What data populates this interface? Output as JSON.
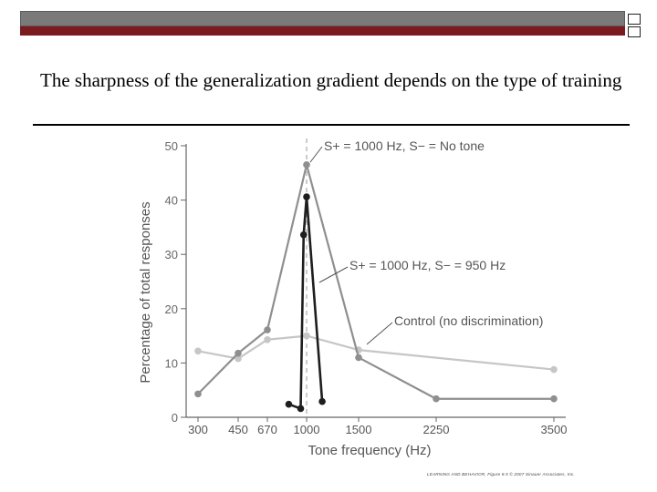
{
  "slide": {
    "title": "The sharpness of the generalization gradient depends on the type of training",
    "credit": "LEARNING AND BEHAVIOR, Figure 8.5 © 2007 Sinauer Associates, Inc."
  },
  "chart_data": {
    "type": "line",
    "title": "",
    "xlabel": "Tone frequency (Hz)",
    "ylabel": "Percentage of total responses",
    "x_ticks": [
      "300",
      "450",
      "670",
      "1000",
      "1500",
      "2250",
      "3500"
    ],
    "y_ticks": [
      0,
      10,
      20,
      30,
      40,
      50
    ],
    "ylim": [
      0,
      50
    ],
    "grid": false,
    "reference_line_at": "1000",
    "series": [
      {
        "name": "Control (no discrimination)",
        "color": "#c6c6c6",
        "points": [
          {
            "x": "300",
            "y": 12.2
          },
          {
            "x": "450",
            "y": 10.8
          },
          {
            "x": "670",
            "y": 14.3
          },
          {
            "x": "1000",
            "y": 15.0
          },
          {
            "x": "1500",
            "y": 12.4
          },
          {
            "x": "3500",
            "y": 8.8
          }
        ]
      },
      {
        "name": "S+ = 1000 Hz, S− = No tone",
        "color": "#8f8f8f",
        "points": [
          {
            "x": "300",
            "y": 4.3
          },
          {
            "x": "450",
            "y": 11.8
          },
          {
            "x": "670",
            "y": 16.1
          },
          {
            "x": "1000",
            "y": 46.5
          },
          {
            "x": "1500",
            "y": 11.0
          },
          {
            "x": "2250",
            "y": 3.4
          },
          {
            "x": "3500",
            "y": 3.4
          }
        ]
      },
      {
        "name": "S+ = 1000 Hz, S− = 950 Hz",
        "color": "#1e1e1e",
        "points": [
          {
            "x": "850",
            "y": 2.4
          },
          {
            "x": "950",
            "y": 1.6
          },
          {
            "x": "975",
            "y": 33.6
          },
          {
            "x": "1000",
            "y": 40.6
          },
          {
            "x": "1150",
            "y": 2.9
          }
        ]
      }
    ]
  }
}
